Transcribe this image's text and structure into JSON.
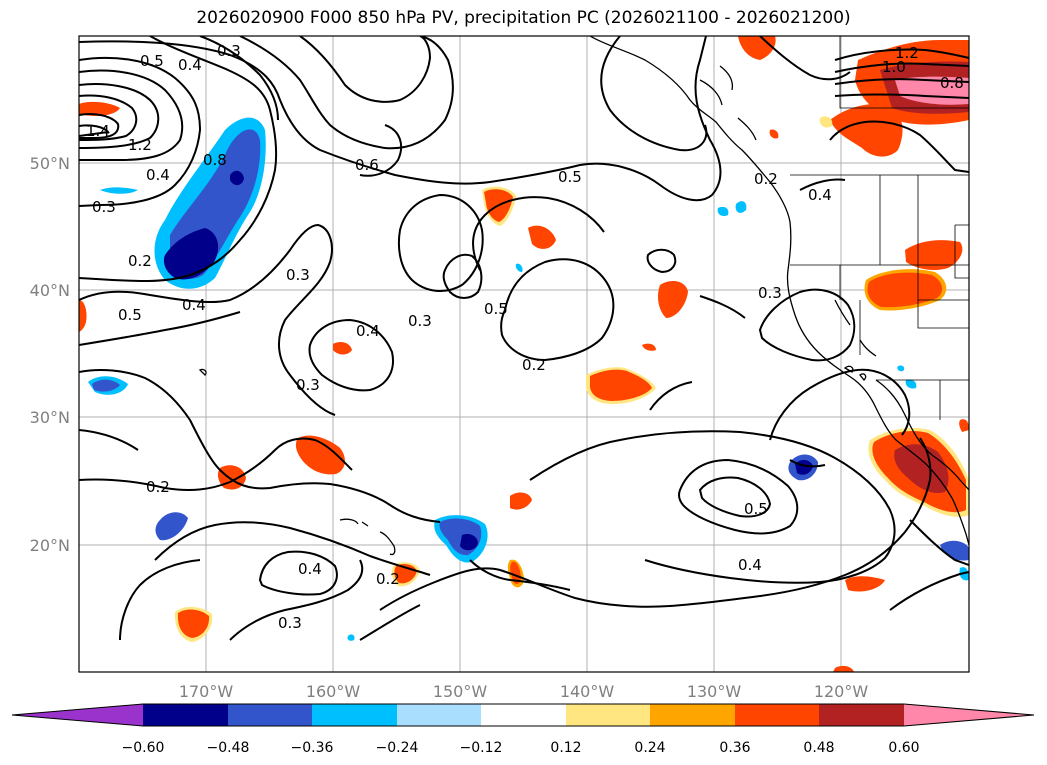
{
  "title": "2026020900 F000 850 hPa PV, precipitation PC (2026021100 - 2026021200)",
  "lon_ticks": [
    "170°W",
    "160°W",
    "150°W",
    "140°W",
    "130°W",
    "120°W"
  ],
  "lat_ticks": [
    "50°N",
    "40°N",
    "30°N",
    "20°N"
  ],
  "contour_labels": [
    "0.5",
    "0.3",
    "0.4",
    "1.4",
    "1.2",
    "0.8",
    "0.6",
    "0.5",
    "0.4",
    "0.3",
    "0.2",
    "0.5",
    "0.4",
    "0.4",
    "0.3",
    "0.3",
    "0.3",
    "0.4",
    "0.5",
    "0.2",
    "0.2",
    "0.3",
    "0.2",
    "0.4",
    "0.2",
    "0.5",
    "0.4",
    "0.3",
    "1.2",
    "1.0",
    "0.8"
  ],
  "colorbar": {
    "labels": [
      "−0.60",
      "−0.48",
      "−0.36",
      "−0.24",
      "−0.12",
      "0.12",
      "0.24",
      "0.36",
      "0.48",
      "0.60"
    ],
    "colors": [
      "#9933cc",
      "#00008b",
      "#3355cc",
      "#00bfff",
      "#aadeff",
      "#ffffff",
      "#ffe680",
      "#ffa500",
      "#ff4500",
      "#b22222",
      "#ff88aa"
    ]
  },
  "colors": {
    "contour": "#000000",
    "grid": "#b0b0b0",
    "tick_label": "#808080"
  }
}
